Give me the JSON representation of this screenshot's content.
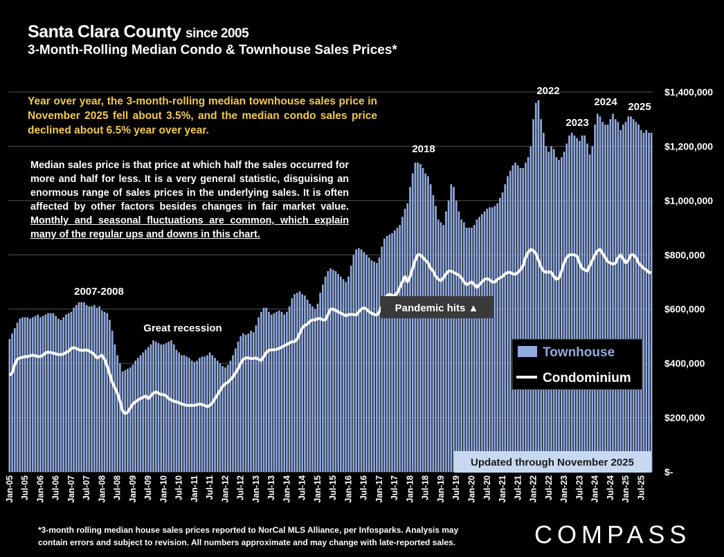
{
  "title": "Santa Clara County",
  "title_note": "since 2005",
  "subtitle": "3-Month-Rolling Median Condo & Townhouse Sales Prices*",
  "summary": "Year over year, the 3-month-rolling median townhouse sales price in November 2025 fell about 3.5%, and the median condo sales price declined about 6.5% year over year.",
  "note": {
    "text": "Median sales price is that price at which half the sales occurred for more and half for less. It is a very general statistic, disguising an enormous range of sales prices in the underlying sales. It is often affected by other factors besides changes in fair market value.",
    "underlined": "Monthly and seasonal fluctuations are common, which explain many of the regular ups and downs in this chart."
  },
  "footnote": [
    "*3-month rolling median house sales prices reported to NorCal MLS Alliance, per Infosparks. Analysis may",
    "contain errors and subject to revision. All numbers approximate and may change with late-reported sales."
  ],
  "logo": "COMPASS",
  "chart_data": {
    "type": "bar-line",
    "grid": true,
    "legend": "right",
    "annotations": [
      "2007-2008",
      "Great recession",
      "2018",
      "2022",
      "2023",
      "2024",
      "2025",
      "Pandemic hits ▲",
      "Updated through November 2025"
    ],
    "ylim": [
      0,
      1400000
    ],
    "yticks": [
      {
        "value": 0,
        "label": "$-"
      },
      {
        "value": 200000,
        "label": "$200,000"
      },
      {
        "value": 400000,
        "label": "$400,000"
      },
      {
        "value": 600000,
        "label": "$600,000"
      },
      {
        "value": 800000,
        "label": "$800,000"
      },
      {
        "value": 1000000,
        "label": "$1,000,000"
      },
      {
        "value": 1200000,
        "label": "$1,200,000"
      },
      {
        "value": 1400000,
        "label": "$1,400,000"
      }
    ],
    "categories": [
      "Jan-05",
      null,
      null,
      null,
      null,
      null,
      "Jul-05",
      null,
      null,
      null,
      null,
      null,
      "Jan-06",
      null,
      null,
      null,
      null,
      null,
      "Jul-06",
      null,
      null,
      null,
      null,
      null,
      "Jan-07",
      null,
      null,
      null,
      null,
      null,
      "Jul-07",
      null,
      null,
      null,
      null,
      null,
      "Jan-08",
      null,
      null,
      null,
      null,
      null,
      "Jul-08",
      null,
      null,
      null,
      null,
      null,
      "Jan-09",
      null,
      null,
      null,
      null,
      null,
      "Jul-09",
      null,
      null,
      null,
      null,
      null,
      "Jan-10",
      null,
      null,
      null,
      null,
      null,
      "Jul-10",
      null,
      null,
      null,
      null,
      null,
      "Jan-11",
      null,
      null,
      null,
      null,
      null,
      "Jul-11",
      null,
      null,
      null,
      null,
      null,
      "Jan-12",
      null,
      null,
      null,
      null,
      null,
      "Jul-12",
      null,
      null,
      null,
      null,
      null,
      "Jan-13",
      null,
      null,
      null,
      null,
      null,
      "Jul-13",
      null,
      null,
      null,
      null,
      null,
      "Jan-14",
      null,
      null,
      null,
      null,
      null,
      "Jul-14",
      null,
      null,
      null,
      null,
      null,
      "Jan-15",
      null,
      null,
      null,
      null,
      null,
      "Jul-15",
      null,
      null,
      null,
      null,
      null,
      "Jan-16",
      null,
      null,
      null,
      null,
      null,
      "Jul-16",
      null,
      null,
      null,
      null,
      null,
      "Jan-17",
      null,
      null,
      null,
      null,
      null,
      "Jul-17",
      null,
      null,
      null,
      null,
      null,
      "Jan-18",
      null,
      null,
      null,
      null,
      null,
      "Jul-18",
      null,
      null,
      null,
      null,
      null,
      "Jan-19",
      null,
      null,
      null,
      null,
      null,
      "Jul-19",
      null,
      null,
      null,
      null,
      null,
      "Jan-20",
      null,
      null,
      null,
      null,
      null,
      "Jul-20",
      null,
      null,
      null,
      null,
      null,
      "Jan-21",
      null,
      null,
      null,
      null,
      null,
      "Jul-21",
      null,
      null,
      null,
      null,
      null,
      "Jan-22",
      null,
      null,
      null,
      null,
      null,
      "Jul-22",
      null,
      null,
      null,
      null,
      null,
      "Jan-23",
      null,
      null,
      null,
      null,
      null,
      "Jul-23",
      null,
      null,
      null,
      null,
      null,
      "Jan-24",
      null,
      null,
      null,
      null,
      null,
      "Jul-24",
      null,
      null,
      null,
      null,
      null,
      "Jan-25",
      null,
      null,
      null,
      null,
      null,
      "Jul-25",
      null,
      null,
      null,
      null
    ],
    "series": [
      {
        "name": "Townhouse",
        "type": "bar",
        "color": "#91abde",
        "values": [
          490000,
          510000,
          530000,
          550000,
          565000,
          570000,
          570000,
          570000,
          565000,
          570000,
          575000,
          580000,
          570000,
          575000,
          580000,
          585000,
          585000,
          585000,
          575000,
          565000,
          560000,
          570000,
          580000,
          585000,
          590000,
          605000,
          615000,
          625000,
          625000,
          625000,
          615000,
          610000,
          610000,
          615000,
          605000,
          610000,
          595000,
          590000,
          585000,
          560000,
          520000,
          470000,
          430000,
          400000,
          370000,
          375000,
          380000,
          385000,
          395000,
          410000,
          420000,
          430000,
          440000,
          450000,
          460000,
          470000,
          485000,
          480000,
          475000,
          470000,
          470000,
          475000,
          480000,
          485000,
          470000,
          450000,
          440000,
          430000,
          430000,
          425000,
          420000,
          410000,
          405000,
          410000,
          420000,
          425000,
          425000,
          430000,
          440000,
          430000,
          420000,
          410000,
          400000,
          390000,
          385000,
          395000,
          410000,
          430000,
          455000,
          480000,
          500000,
          510000,
          505000,
          510000,
          520000,
          515000,
          540000,
          570000,
          590000,
          605000,
          605000,
          590000,
          580000,
          585000,
          590000,
          595000,
          590000,
          580000,
          590000,
          610000,
          640000,
          655000,
          660000,
          665000,
          655000,
          650000,
          635000,
          620000,
          610000,
          600000,
          620000,
          660000,
          690000,
          720000,
          740000,
          750000,
          745000,
          740000,
          730000,
          720000,
          710000,
          700000,
          720000,
          760000,
          800000,
          820000,
          825000,
          820000,
          810000,
          800000,
          790000,
          780000,
          775000,
          770000,
          790000,
          830000,
          860000,
          870000,
          875000,
          880000,
          890000,
          900000,
          910000,
          940000,
          970000,
          990000,
          1050000,
          1100000,
          1140000,
          1140000,
          1135000,
          1120000,
          1100000,
          1090000,
          1060000,
          1020000,
          980000,
          930000,
          920000,
          910000,
          960000,
          1000000,
          1060000,
          1050000,
          1000000,
          960000,
          930000,
          920000,
          900000,
          900000,
          900000,
          910000,
          930000,
          940000,
          950000,
          960000,
          970000,
          975000,
          975000,
          980000,
          990000,
          1010000,
          1030000,
          1060000,
          1090000,
          1110000,
          1130000,
          1140000,
          1130000,
          1120000,
          1120000,
          1140000,
          1160000,
          1200000,
          1300000,
          1360000,
          1370000,
          1300000,
          1250000,
          1200000,
          1180000,
          1200000,
          1190000,
          1160000,
          1150000,
          1160000,
          1180000,
          1210000,
          1240000,
          1250000,
          1240000,
          1230000,
          1220000,
          1240000,
          1240000,
          1210000,
          1170000,
          1200000,
          1280000,
          1320000,
          1310000,
          1290000,
          1280000,
          1280000,
          1300000,
          1320000,
          1300000,
          1290000,
          1260000,
          1280000,
          1290000,
          1310000,
          1310000,
          1300000,
          1290000,
          1280000,
          1260000,
          1250000,
          1260000,
          1250000,
          1250000
        ]
      },
      {
        "name": "Condominium",
        "type": "line",
        "color": "#ffffff",
        "values": [
          355000,
          365000,
          395000,
          415000,
          420000,
          422000,
          425000,
          425000,
          428000,
          430000,
          428000,
          425000,
          425000,
          430000,
          438000,
          442000,
          440000,
          438000,
          435000,
          433000,
          432000,
          435000,
          440000,
          445000,
          455000,
          458000,
          455000,
          450000,
          448000,
          448000,
          450000,
          445000,
          440000,
          432000,
          420000,
          425000,
          430000,
          415000,
          390000,
          360000,
          330000,
          310000,
          290000,
          260000,
          225000,
          215000,
          220000,
          235000,
          250000,
          258000,
          265000,
          270000,
          275000,
          280000,
          270000,
          280000,
          290000,
          295000,
          290000,
          285000,
          285000,
          280000,
          270000,
          265000,
          260000,
          258000,
          255000,
          250000,
          248000,
          245000,
          245000,
          245000,
          245000,
          248000,
          250000,
          248000,
          245000,
          240000,
          245000,
          255000,
          270000,
          285000,
          300000,
          315000,
          325000,
          330000,
          340000,
          350000,
          365000,
          380000,
          400000,
          415000,
          420000,
          420000,
          418000,
          418000,
          420000,
          415000,
          410000,
          425000,
          440000,
          448000,
          450000,
          450000,
          452000,
          455000,
          460000,
          465000,
          470000,
          475000,
          480000,
          480000,
          490000,
          510000,
          530000,
          540000,
          545000,
          555000,
          560000,
          560000,
          565000,
          565000,
          560000,
          560000,
          580000,
          600000,
          600000,
          595000,
          590000,
          585000,
          580000,
          575000,
          580000,
          580000,
          580000,
          578000,
          590000,
          600000,
          605000,
          600000,
          590000,
          585000,
          580000,
          578000,
          590000,
          610000,
          630000,
          650000,
          655000,
          650000,
          650000,
          660000,
          680000,
          700000,
          720000,
          700000,
          720000,
          750000,
          780000,
          800000,
          800000,
          790000,
          780000,
          770000,
          750000,
          740000,
          720000,
          710000,
          705000,
          715000,
          730000,
          740000,
          740000,
          735000,
          730000,
          725000,
          715000,
          700000,
          690000,
          695000,
          700000,
          690000,
          680000,
          690000,
          700000,
          710000,
          712000,
          708000,
          700000,
          700000,
          710000,
          715000,
          720000,
          730000,
          735000,
          735000,
          730000,
          728000,
          735000,
          745000,
          760000,
          790000,
          810000,
          820000,
          815000,
          805000,
          780000,
          755000,
          740000,
          735000,
          738000,
          735000,
          720000,
          710000,
          715000,
          740000,
          770000,
          790000,
          800000,
          800000,
          800000,
          795000,
          770000,
          750000,
          745000,
          740000,
          760000,
          780000,
          800000,
          815000,
          820000,
          805000,
          790000,
          775000,
          770000,
          765000,
          770000,
          790000,
          800000,
          785000,
          770000,
          780000,
          800000,
          800000,
          790000,
          770000,
          760000,
          750000,
          745000,
          735000,
          735000
        ]
      }
    ]
  }
}
